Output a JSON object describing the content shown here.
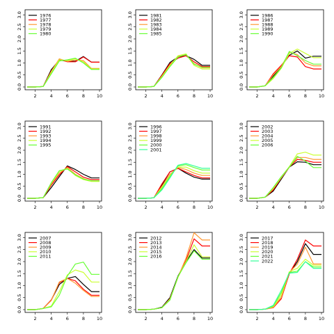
{
  "chart_data": [
    {
      "type": "line",
      "x": [
        1,
        2,
        3,
        4,
        5,
        6,
        7,
        8,
        9,
        10
      ],
      "xticks": [
        2,
        4,
        6,
        8,
        10
      ],
      "yticks": [
        "0.0",
        "0.5",
        "1.0",
        "1.5",
        "2.0",
        "2.5",
        "3.0"
      ],
      "xlim": [
        1,
        10
      ],
      "ylim": [
        0,
        3.1
      ],
      "legend_position": "top-left",
      "series": [
        {
          "name": "1976",
          "color": "#000000",
          "values": [
            0,
            0,
            0.02,
            0.72,
            1.12,
            1.07,
            1.07,
            1.27,
            1.03,
            1.03
          ]
        },
        {
          "name": "1977",
          "color": "#ff0000",
          "values": [
            0,
            0,
            0.02,
            0.66,
            1.15,
            1.05,
            1.05,
            1.25,
            1.03,
            1.03
          ]
        },
        {
          "name": "1978",
          "color": "#ff9933",
          "values": [
            0,
            0,
            0.02,
            0.65,
            1.17,
            1.07,
            1.12,
            1.1,
            0.77,
            0.77
          ]
        },
        {
          "name": "1979",
          "color": "#ccff33",
          "values": [
            0,
            0,
            0.02,
            0.6,
            1.13,
            1.1,
            1.17,
            1.05,
            0.75,
            0.75
          ]
        },
        {
          "name": "1980",
          "color": "#66ff33",
          "values": [
            0,
            0,
            0.02,
            0.55,
            1.08,
            1.13,
            1.2,
            1.0,
            0.73,
            0.73
          ]
        }
      ]
    },
    {
      "type": "line",
      "x": [
        1,
        2,
        3,
        4,
        5,
        6,
        7,
        8,
        9,
        10
      ],
      "xticks": [
        2,
        4,
        6,
        8,
        10
      ],
      "yticks": [
        "0.0",
        "0.5",
        "1.0",
        "1.5",
        "2.0",
        "2.5",
        "3.0"
      ],
      "xlim": [
        1,
        10
      ],
      "ylim": [
        0,
        3.1
      ],
      "legend_position": "top-left",
      "series": [
        {
          "name": "1981",
          "color": "#000000",
          "values": [
            0,
            0,
            0.02,
            0.5,
            1.02,
            1.25,
            1.3,
            1.15,
            0.9,
            0.9
          ]
        },
        {
          "name": "1982",
          "color": "#ff0000",
          "values": [
            0,
            0,
            0.02,
            0.48,
            0.97,
            1.2,
            1.3,
            1.05,
            0.85,
            0.85
          ]
        },
        {
          "name": "1983",
          "color": "#ff9933",
          "values": [
            0,
            0,
            0.02,
            0.45,
            0.92,
            1.27,
            1.35,
            0.97,
            0.8,
            0.8
          ]
        },
        {
          "name": "1984",
          "color": "#ccff33",
          "values": [
            0,
            0,
            0.02,
            0.43,
            0.88,
            1.3,
            1.38,
            0.9,
            0.75,
            0.75
          ]
        },
        {
          "name": "1985",
          "color": "#66ff33",
          "values": [
            0,
            0,
            0.02,
            0.4,
            0.85,
            1.25,
            1.35,
            0.95,
            0.82,
            0.82
          ]
        }
      ]
    },
    {
      "type": "line",
      "x": [
        1,
        2,
        3,
        4,
        5,
        6,
        7,
        8,
        9,
        10
      ],
      "xticks": [
        2,
        4,
        6,
        8,
        10
      ],
      "yticks": [
        "0.0",
        "0.5",
        "1.0",
        "1.5",
        "2.0",
        "2.5",
        "3.0"
      ],
      "xlim": [
        1,
        10
      ],
      "ylim": [
        0,
        3.1
      ],
      "legend_position": "top-left",
      "series": [
        {
          "name": "1986",
          "color": "#000000",
          "values": [
            0,
            0,
            0.05,
            0.45,
            0.85,
            1.32,
            1.5,
            1.2,
            1.28,
            1.28
          ]
        },
        {
          "name": "1987",
          "color": "#ff0000",
          "values": [
            0,
            0,
            0.05,
            0.55,
            0.9,
            1.3,
            1.25,
            0.85,
            0.75,
            0.75
          ]
        },
        {
          "name": "1988",
          "color": "#ff9933",
          "values": [
            0,
            0,
            0.05,
            0.5,
            0.85,
            1.45,
            1.35,
            1.0,
            0.88,
            0.88
          ]
        },
        {
          "name": "1989",
          "color": "#ccff33",
          "values": [
            0,
            0,
            0.05,
            0.35,
            0.78,
            1.4,
            1.58,
            1.4,
            1.22,
            1.22
          ]
        },
        {
          "name": "1990",
          "color": "#66ff33",
          "values": [
            0,
            0,
            0.05,
            0.4,
            0.8,
            1.48,
            1.3,
            1.1,
            0.95,
            0.95
          ]
        }
      ]
    },
    {
      "type": "line",
      "x": [
        1,
        2,
        3,
        4,
        5,
        6,
        7,
        8,
        9,
        10
      ],
      "xticks": [
        2,
        4,
        6,
        8,
        10
      ],
      "yticks": [
        "0.0",
        "0.5",
        "1.0",
        "1.5",
        "2.0",
        "2.5",
        "3.0"
      ],
      "xlim": [
        1,
        10
      ],
      "ylim": [
        0,
        3.1
      ],
      "legend_position": "top-left",
      "series": [
        {
          "name": "1991",
          "color": "#000000",
          "values": [
            0,
            0,
            0.03,
            0.45,
            0.9,
            1.35,
            1.2,
            1.0,
            0.85,
            0.85
          ]
        },
        {
          "name": "1992",
          "color": "#ff0000",
          "values": [
            0,
            0,
            0.03,
            0.55,
            0.98,
            1.32,
            1.1,
            0.88,
            0.78,
            0.78
          ]
        },
        {
          "name": "1993",
          "color": "#ff9933",
          "values": [
            0,
            0,
            0.03,
            0.6,
            1.05,
            1.28,
            1.0,
            0.82,
            0.72,
            0.72
          ]
        },
        {
          "name": "1994",
          "color": "#ccff33",
          "values": [
            0,
            0,
            0.03,
            0.62,
            1.12,
            1.25,
            0.95,
            0.78,
            0.7,
            0.7
          ]
        },
        {
          "name": "1995",
          "color": "#66ff33",
          "values": [
            0,
            0,
            0.03,
            0.65,
            1.15,
            1.22,
            0.98,
            0.8,
            0.73,
            0.73
          ]
        }
      ]
    },
    {
      "type": "line",
      "x": [
        1,
        2,
        3,
        4,
        5,
        6,
        7,
        8,
        9,
        10
      ],
      "xticks": [
        2,
        4,
        6,
        8,
        10
      ],
      "yticks": [
        "0.0",
        "0.5",
        "1.0",
        "1.5",
        "2.0",
        "2.5",
        "3.0"
      ],
      "xlim": [
        1,
        10
      ],
      "ylim": [
        0,
        3.1
      ],
      "legend_position": "top-left",
      "series": [
        {
          "name": "1996",
          "color": "#000000",
          "values": [
            0,
            0,
            0.02,
            0.55,
            1.1,
            1.25,
            1.05,
            0.88,
            0.8,
            0.8
          ]
        },
        {
          "name": "1997",
          "color": "#ff0000",
          "values": [
            0,
            0,
            0.02,
            0.6,
            1.1,
            1.25,
            1.1,
            0.95,
            0.85,
            0.85
          ]
        },
        {
          "name": "1998",
          "color": "#ff9933",
          "values": [
            0,
            0,
            0.02,
            0.5,
            1.0,
            1.28,
            1.2,
            1.05,
            0.95,
            0.95
          ]
        },
        {
          "name": "1999",
          "color": "#ccff33",
          "values": [
            0,
            0,
            0.02,
            0.45,
            0.95,
            1.3,
            1.3,
            1.15,
            1.05,
            1.05
          ]
        },
        {
          "name": "2000",
          "color": "#66ff33",
          "values": [
            0,
            0,
            0.02,
            0.4,
            0.9,
            1.35,
            1.4,
            1.28,
            1.18,
            1.18
          ]
        },
        {
          "name": "2001",
          "color": "#33ff99",
          "values": [
            0,
            0,
            0.02,
            0.35,
            0.85,
            1.38,
            1.45,
            1.35,
            1.25,
            1.25
          ]
        }
      ]
    },
    {
      "type": "line",
      "x": [
        1,
        2,
        3,
        4,
        5,
        6,
        7,
        8,
        9,
        10
      ],
      "xticks": [
        2,
        4,
        6,
        8,
        10
      ],
      "yticks": [
        "0.0",
        "0.5",
        "1.0",
        "1.5",
        "2.0",
        "2.5",
        "3.0"
      ],
      "xlim": [
        1,
        10
      ],
      "ylim": [
        0,
        3.1
      ],
      "legend_position": "top-left",
      "series": [
        {
          "name": "2002",
          "color": "#000000",
          "values": [
            0,
            0,
            0.05,
            0.3,
            0.8,
            1.3,
            1.52,
            1.5,
            1.4,
            1.4
          ]
        },
        {
          "name": "2003",
          "color": "#ff0000",
          "values": [
            0,
            0,
            0.05,
            0.35,
            0.85,
            1.3,
            1.62,
            1.58,
            1.5,
            1.5
          ]
        },
        {
          "name": "2004",
          "color": "#ff9933",
          "values": [
            0,
            0,
            0.05,
            0.4,
            0.85,
            1.3,
            1.7,
            1.7,
            1.62,
            1.62
          ]
        },
        {
          "name": "2005",
          "color": "#ccff33",
          "values": [
            0,
            0,
            0.05,
            0.42,
            0.88,
            1.32,
            1.85,
            1.92,
            1.8,
            1.8
          ]
        },
        {
          "name": "2006",
          "color": "#66ff33",
          "values": [
            0,
            0,
            0.05,
            0.45,
            0.9,
            1.3,
            1.75,
            1.55,
            1.28,
            1.28
          ]
        }
      ]
    },
    {
      "type": "line",
      "x": [
        1,
        2,
        3,
        4,
        5,
        6,
        7,
        8,
        9,
        10
      ],
      "xticks": [
        2,
        4,
        6,
        8,
        10
      ],
      "yticks": [
        "0.0",
        "0.5",
        "1.0",
        "1.5",
        "2.0",
        "2.5",
        "3.0"
      ],
      "xlim": [
        1,
        10
      ],
      "ylim": [
        0,
        3.1
      ],
      "legend_position": "top-left",
      "series": [
        {
          "name": "2007",
          "color": "#000000",
          "values": [
            0,
            0,
            0.05,
            0.4,
            1.05,
            1.3,
            1.38,
            1.05,
            0.75,
            0.75
          ]
        },
        {
          "name": "2008",
          "color": "#ff0000",
          "values": [
            0,
            0,
            0.05,
            0.4,
            1.12,
            1.3,
            1.2,
            0.85,
            0.6,
            0.6
          ]
        },
        {
          "name": "2009",
          "color": "#ff9933",
          "values": [
            0,
            0,
            0.05,
            0.38,
            1.15,
            1.3,
            1.1,
            0.8,
            0.55,
            0.55
          ]
        },
        {
          "name": "2010",
          "color": "#ccff33",
          "values": [
            0,
            0,
            0.05,
            0.15,
            0.75,
            1.45,
            1.65,
            1.55,
            1.15,
            1.15
          ]
        },
        {
          "name": "2011",
          "color": "#66ff33",
          "values": [
            0,
            0,
            0.05,
            0.12,
            0.6,
            1.4,
            1.9,
            1.98,
            1.47,
            1.47
          ]
        }
      ]
    },
    {
      "type": "line",
      "x": [
        1,
        2,
        3,
        4,
        5,
        6,
        7,
        8,
        9,
        10
      ],
      "xticks": [
        2,
        4,
        6,
        8,
        10
      ],
      "yticks": [
        "0.0",
        "0.5",
        "1.0",
        "1.5",
        "2.0",
        "2.5",
        "3.0"
      ],
      "xlim": [
        1,
        10
      ],
      "ylim": [
        0,
        3.1
      ],
      "legend_position": "top-left",
      "series": [
        {
          "name": "2012",
          "color": "#000000",
          "values": [
            0,
            0,
            0.02,
            0.1,
            0.5,
            1.4,
            2.0,
            2.5,
            2.15,
            2.15
          ]
        },
        {
          "name": "2013",
          "color": "#ff0000",
          "values": [
            0,
            0,
            0.02,
            0.08,
            0.45,
            1.35,
            2.05,
            2.95,
            2.65,
            2.65
          ]
        },
        {
          "name": "2014",
          "color": "#ff9933",
          "values": [
            0,
            0,
            0.02,
            0.08,
            0.45,
            1.35,
            2.15,
            3.2,
            2.9,
            2.9
          ]
        },
        {
          "name": "2015",
          "color": "#ccff33",
          "values": [
            0,
            0,
            0.02,
            0.08,
            0.42,
            1.35,
            2.0,
            2.7,
            2.2,
            2.2
          ]
        },
        {
          "name": "2016",
          "color": "#66ff33",
          "values": [
            0,
            0,
            0.02,
            0.08,
            0.4,
            1.38,
            1.95,
            2.45,
            2.1,
            2.1
          ]
        }
      ]
    },
    {
      "type": "line",
      "x": [
        1,
        2,
        3,
        4,
        5,
        6,
        7,
        8,
        9,
        10
      ],
      "xticks": [
        2,
        4,
        6,
        8,
        10
      ],
      "yticks": [
        "0.0",
        "0.5",
        "1.0",
        "1.5",
        "2.0",
        "2.5",
        "3.0"
      ],
      "xlim": [
        1,
        10
      ],
      "ylim": [
        0,
        3.1
      ],
      "legend_position": "top-left",
      "series": [
        {
          "name": "2017",
          "color": "#000000",
          "values": [
            0,
            0,
            0.02,
            0.1,
            0.5,
            1.5,
            2.0,
            2.75,
            2.3,
            2.3
          ]
        },
        {
          "name": "2018",
          "color": "#ff0000",
          "values": [
            0,
            0,
            0.02,
            0.08,
            0.45,
            1.5,
            2.1,
            2.9,
            2.65,
            2.65
          ]
        },
        {
          "name": "2019",
          "color": "#ff9933",
          "values": [
            0,
            0,
            0.02,
            0.1,
            0.5,
            1.55,
            1.9,
            2.6,
            1.9,
            1.9
          ]
        },
        {
          "name": "2020",
          "color": "#ccff33",
          "values": [
            0,
            0,
            0.02,
            0.12,
            0.6,
            1.58,
            1.72,
            2.1,
            1.85,
            1.85
          ]
        },
        {
          "name": "2021",
          "color": "#66ff33",
          "values": [
            0,
            0,
            0.02,
            0.15,
            0.7,
            1.55,
            1.6,
            2.0,
            1.78,
            1.78
          ]
        },
        {
          "name": "2022",
          "color": "#33ff99",
          "values": [
            0,
            0,
            0.02,
            0.18,
            0.8,
            1.52,
            1.55,
            2.0,
            1.72,
            1.72
          ]
        }
      ]
    }
  ]
}
